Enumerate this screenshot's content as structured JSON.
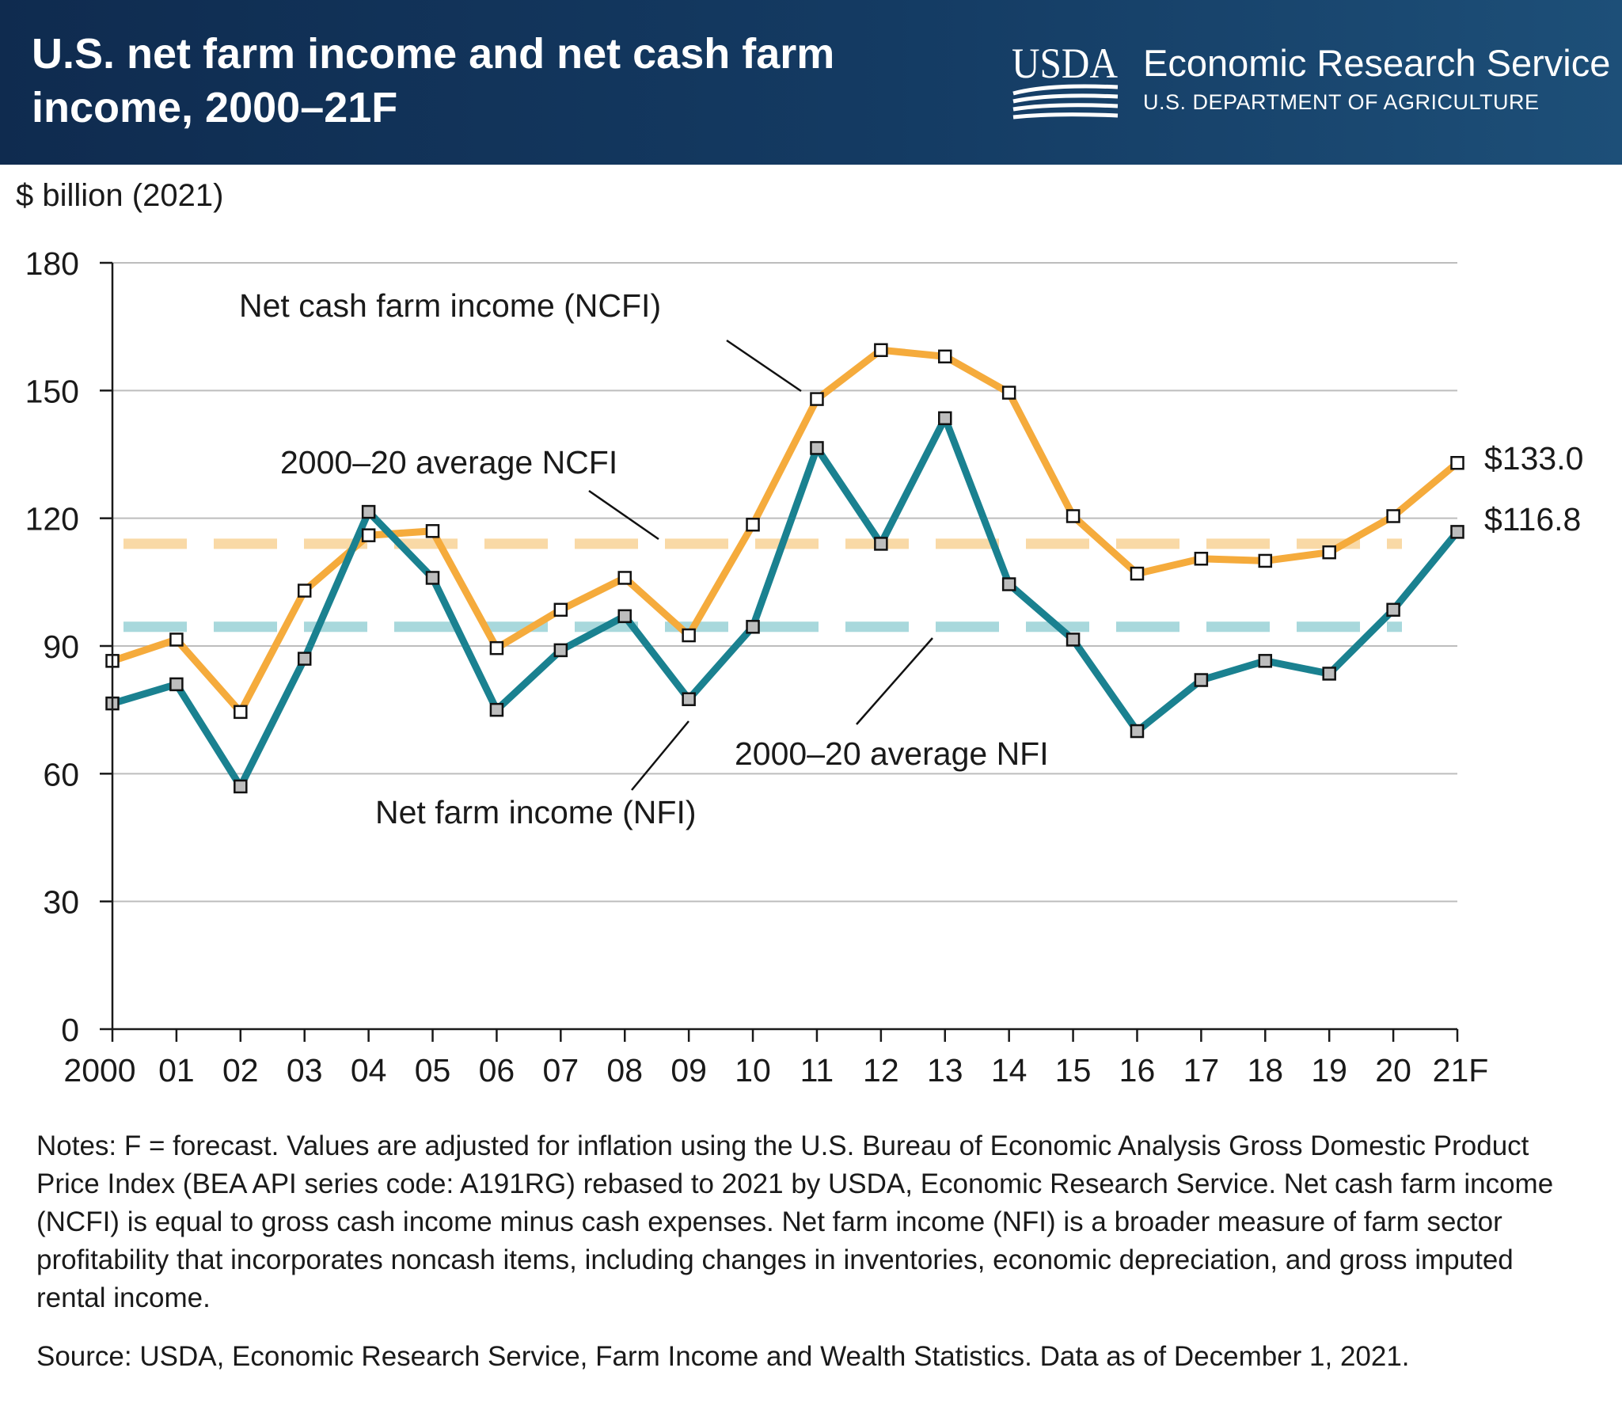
{
  "header": {
    "title": "U.S. net farm income and net cash farm income, 2000–21F",
    "logo_text": "USDA",
    "agency": "Economic Research Service",
    "department": "U.S. DEPARTMENT OF AGRICULTURE"
  },
  "colors": {
    "header_bg": "#143b63",
    "ncfi_line": "#f5ab3c",
    "nfi_line": "#1a8190",
    "ncfi_avg": "#f9d9a6",
    "nfi_avg": "#a8d8dc",
    "grid": "#bdbdbd"
  },
  "chart_data": {
    "type": "line",
    "ylabel": "$ billion (2021)",
    "ylim": [
      0,
      180
    ],
    "yticks": [
      0,
      30,
      60,
      90,
      120,
      150,
      180
    ],
    "categories": [
      "2000",
      "01",
      "02",
      "03",
      "04",
      "05",
      "06",
      "07",
      "08",
      "09",
      "10",
      "11",
      "12",
      "13",
      "14",
      "15",
      "16",
      "17",
      "18",
      "19",
      "20",
      "21F"
    ],
    "grid": "horizontal",
    "series": [
      {
        "name": "Net cash farm income (NCFI)",
        "color": "#f5ab3c",
        "values": [
          86.5,
          91.5,
          74.5,
          103.0,
          116.0,
          117.0,
          89.5,
          98.5,
          106.0,
          92.5,
          118.5,
          148.0,
          159.5,
          158.0,
          149.5,
          120.5,
          107.0,
          110.5,
          110.0,
          112.0,
          120.5,
          133.0
        ]
      },
      {
        "name": "Net farm income (NFI)",
        "color": "#1a8190",
        "values": [
          76.5,
          81.0,
          57.0,
          87.0,
          121.5,
          106.0,
          75.0,
          89.0,
          97.0,
          77.5,
          94.5,
          136.5,
          114.0,
          143.5,
          104.5,
          91.5,
          70.0,
          82.0,
          86.5,
          83.5,
          98.5,
          116.8
        ]
      }
    ],
    "reference_lines": [
      {
        "name": "2000–20 average NCFI",
        "value": 114,
        "color": "#f9d9a6"
      },
      {
        "name": "2000–20 average NFI",
        "value": 94.5,
        "color": "#a8d8dc"
      }
    ],
    "annotations": {
      "ncfi_label": "Net cash farm income (NCFI)",
      "nfi_label": "Net farm income (NFI)",
      "ncfi_avg_label": "2000–20 average NCFI",
      "nfi_avg_label": "2000–20 average NFI",
      "ncfi_end_value": "$133.0",
      "nfi_end_value": "$116.8"
    }
  },
  "notes": "Notes: F = forecast. Values are adjusted for inflation using the U.S. Bureau of Economic Analysis Gross Domestic Product Price Index (BEA API series code: A191RG) rebased to 2021 by USDA, Economic Research Service. Net cash farm income (NCFI) is equal to gross cash income minus cash expenses. Net farm income (NFI) is a broader measure of farm sector profitability that incorporates noncash items, including changes in inventories, economic depreciation, and gross imputed rental income.",
  "source": "Source: USDA, Economic Research Service, Farm Income and Wealth Statistics. Data as of December 1, 2021."
}
